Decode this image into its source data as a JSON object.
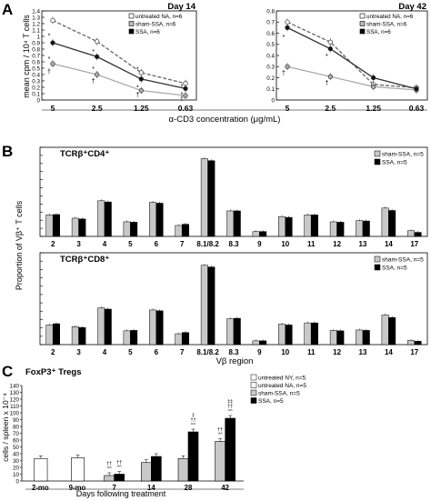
{
  "panels": {
    "A": {
      "letter": "A",
      "ylabel": "mean cpm / 10⁴ T cells",
      "xlabel": "α-CD3 concentration (μg/mL)"
    },
    "B": {
      "letter": "B",
      "ylabel": "Proportion of Vβ⁺ T cells",
      "xlabel": "Vβ region"
    },
    "C": {
      "letter": "C",
      "ylabel": "cells / spleen x 10⁻⁴",
      "xlabel": "Days following treatment"
    }
  },
  "chart_data": [
    {
      "type": "line",
      "title": "Day 14",
      "x": [
        "5",
        "2.5",
        "1.25",
        "0.63"
      ],
      "ylim": [
        0,
        1.4
      ],
      "yticks": [
        "0",
        "0.1",
        "0.2",
        "0.3",
        "0.4",
        "0.5",
        "0.6",
        "0.7",
        "0.8",
        "0.9",
        "1",
        "1.1",
        "1.2",
        "1.3",
        "1.4"
      ],
      "series": [
        {
          "name": "untreated NA, n=6",
          "values": [
            1.25,
            0.92,
            0.43,
            0.26
          ],
          "style": "dashed",
          "color": "#666666",
          "marker": "open"
        },
        {
          "name": "sham-SSA, n=6",
          "values": [
            0.57,
            0.4,
            0.15,
            0.07
          ],
          "style": "solid",
          "color": "#aaaaaa",
          "marker": "gray"
        },
        {
          "name": "SSA, n=6",
          "values": [
            0.9,
            0.68,
            0.33,
            0.18
          ],
          "style": "solid",
          "color": "#333333",
          "marker": "black"
        }
      ],
      "annotations": [
        {
          "text": "*",
          "x": "5",
          "y": 1.02
        },
        {
          "text": "*",
          "x": "5",
          "y": 0.66
        },
        {
          "text": "†",
          "x": "5",
          "y": 0.46
        },
        {
          "text": "*",
          "x": "2.5",
          "y": 0.77
        },
        {
          "text": "*",
          "x": "2.5",
          "y": 0.5
        },
        {
          "text": "†",
          "x": "2.5",
          "y": 0.31
        },
        {
          "text": "*",
          "x": "1.25",
          "y": 0.49
        },
        {
          "text": "*",
          "x": "1.25",
          "y": 0.21
        },
        {
          "text": "†",
          "x": "1.25",
          "y": 0.09
        },
        {
          "text": "*",
          "x": "0.63",
          "y": 0.22
        },
        {
          "text": "*",
          "x": "0.63",
          "y": 0.1
        },
        {
          "text": "†",
          "x": "0.63",
          "y": 0.03
        }
      ]
    },
    {
      "type": "line",
      "title": "Day 42",
      "x": [
        "5",
        "2.5",
        "1.25",
        "0.63"
      ],
      "ylim": [
        0,
        0.8
      ],
      "yticks": [
        "0",
        "0.1",
        "0.2",
        "0.3",
        "0.4",
        "0.5",
        "0.6",
        "0.7",
        "0.8"
      ],
      "series": [
        {
          "name": "untreated NA, n=6",
          "values": [
            0.7,
            0.52,
            0.14,
            0.11
          ],
          "style": "dashed",
          "color": "#666666",
          "marker": "open"
        },
        {
          "name": "sham-SSA, n=6",
          "values": [
            0.3,
            0.21,
            0.12,
            0.09
          ],
          "style": "solid",
          "color": "#aaaaaa",
          "marker": "gray"
        },
        {
          "name": "SSA, n=6",
          "values": [
            0.65,
            0.46,
            0.2,
            0.1
          ],
          "style": "solid",
          "color": "#333333",
          "marker": "black"
        }
      ],
      "annotations": [
        {
          "text": "*",
          "x": "5",
          "y": 0.57
        },
        {
          "text": "†",
          "x": "5",
          "y": 0.25
        },
        {
          "text": "*",
          "x": "2.5",
          "y": 0.4
        },
        {
          "text": "†",
          "x": "2.5",
          "y": 0.16
        }
      ]
    },
    {
      "type": "bar",
      "title": "TCRβ⁺CD4⁺",
      "categories": [
        "2",
        "3",
        "4",
        "5",
        "6",
        "7",
        "8.1/8.2",
        "8.3",
        "9",
        "10",
        "11",
        "12",
        "13",
        "14",
        "17"
      ],
      "ylim": [
        0,
        22
      ],
      "series": [
        {
          "name": "sham-SSA, n=5",
          "color": "#c8c8c8",
          "values": [
            5.3,
            4.5,
            8.8,
            3.6,
            8.4,
            2.7,
            19.2,
            6.3,
            1.2,
            4.9,
            5.3,
            3.6,
            3.9,
            7.0,
            1.4
          ]
        },
        {
          "name": "SSA, n=5",
          "color": "#000000",
          "values": [
            5.4,
            4.3,
            8.5,
            3.5,
            8.2,
            3.0,
            18.7,
            6.3,
            1.2,
            4.7,
            5.3,
            3.5,
            3.8,
            6.4,
            1.0
          ]
        }
      ]
    },
    {
      "type": "bar",
      "title": "TCRβ⁺CD8⁺",
      "categories": [
        "2",
        "3",
        "4",
        "5",
        "6",
        "7",
        "8.1/8.2",
        "8.3",
        "9",
        "10",
        "11",
        "12",
        "13",
        "14",
        "17"
      ],
      "ylim": [
        0,
        22
      ],
      "series": [
        {
          "name": "sham-SSA, n=5",
          "color": "#c8c8c8",
          "values": [
            4.7,
            4.3,
            8.8,
            3.3,
            8.3,
            2.6,
            19.0,
            6.2,
            0.9,
            4.9,
            5.2,
            3.4,
            3.5,
            7.1,
            1.0
          ]
        },
        {
          "name": "SSA, n=5",
          "color": "#000000",
          "values": [
            5.0,
            4.1,
            8.5,
            3.4,
            8.1,
            2.9,
            18.6,
            6.3,
            0.9,
            4.7,
            5.2,
            3.3,
            3.4,
            6.5,
            0.8
          ]
        }
      ]
    },
    {
      "type": "bar",
      "title": "FoxP3⁺ Tregs",
      "categories": [
        "2-mo",
        "9-mo",
        "7",
        "14",
        "28",
        "42"
      ],
      "ylim": [
        0,
        140
      ],
      "yticks": [
        "0",
        "10",
        "20",
        "30",
        "40",
        "50",
        "60",
        "70",
        "80",
        "90",
        "100",
        "110",
        "120",
        "130",
        "140"
      ],
      "series": [
        {
          "name": "untreated NY, n=5",
          "color": "#ffffff",
          "values": [
            33,
            null,
            null,
            null,
            null,
            null
          ]
        },
        {
          "name": "untreated NA, n=5",
          "color": "#ffffff",
          "values": [
            null,
            34,
            null,
            null,
            null,
            null
          ]
        },
        {
          "name": "sham-SSA, n=5",
          "color": "#c8c8c8",
          "values": [
            null,
            null,
            8,
            27,
            33,
            58
          ]
        },
        {
          "name": "SSA, n=5",
          "color": "#000000",
          "values": [
            null,
            null,
            10,
            36,
            72,
            92
          ]
        }
      ],
      "annotations": [
        {
          "category": "7",
          "bar": 0,
          "text": "^^"
        },
        {
          "category": "7",
          "bar": 0,
          "text": "††"
        },
        {
          "category": "7",
          "bar": 1,
          "text": "^^"
        },
        {
          "category": "7",
          "bar": 1,
          "text": "††"
        },
        {
          "category": "28",
          "bar": 1,
          "text": "^^"
        },
        {
          "category": "28",
          "bar": 1,
          "text": "††"
        },
        {
          "category": "28",
          "bar": 1,
          "text": "‡"
        },
        {
          "category": "42",
          "bar": 0,
          "text": "^^"
        },
        {
          "category": "42",
          "bar": 0,
          "text": "††"
        },
        {
          "category": "42",
          "bar": 1,
          "text": "^^"
        },
        {
          "category": "42",
          "bar": 1,
          "text": "††"
        },
        {
          "category": "42",
          "bar": 1,
          "text": "‡‡"
        }
      ]
    }
  ]
}
